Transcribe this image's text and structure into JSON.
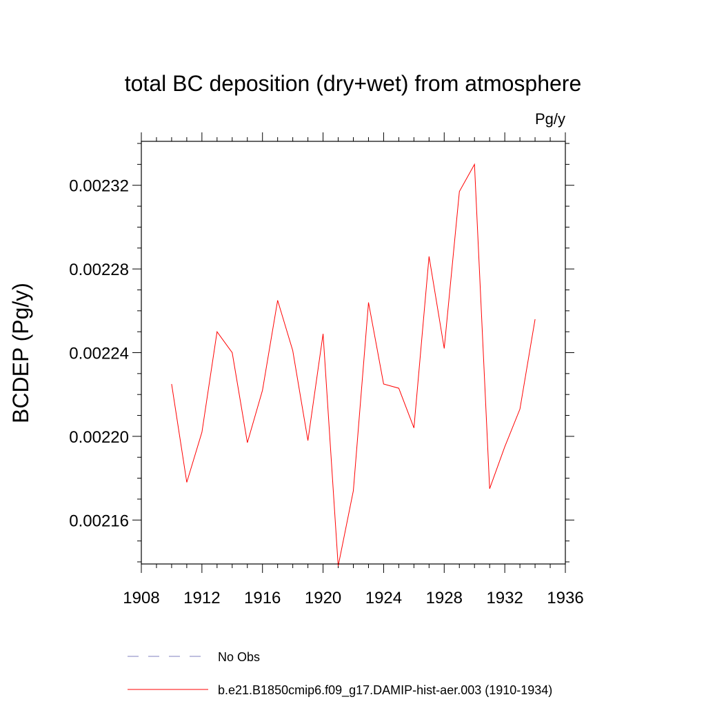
{
  "chart_data": {
    "type": "line",
    "title": "total BC deposition (dry+wet) from atmosphere",
    "units_label": "Pg/y",
    "ylabel": "BCDEP  (Pg/y)",
    "xlabel": "",
    "xlim": [
      1908,
      1936
    ],
    "ylim": [
      0.002139,
      0.002341
    ],
    "x_ticks": [
      1908,
      1912,
      1916,
      1920,
      1924,
      1928,
      1932,
      1936
    ],
    "x_tick_labels": [
      "1908",
      "1912",
      "1916",
      "1920",
      "1924",
      "1928",
      "1932",
      "1936"
    ],
    "y_ticks": [
      0.00216,
      0.0022,
      0.00224,
      0.00228,
      0.00232
    ],
    "y_tick_labels": [
      "0.00216",
      "0.00220",
      "0.00224",
      "0.00228",
      "0.00232"
    ],
    "grid": false,
    "legend_position": "bottom",
    "series": [
      {
        "name": "b.e21.B1850cmip6.f09_g17.DAMIP-hist-aer.003 (1910-1934)",
        "color": "#ff0000",
        "style": "solid",
        "x": [
          1910,
          1911,
          1912,
          1913,
          1914,
          1915,
          1916,
          1917,
          1918,
          1919,
          1920,
          1921,
          1922,
          1923,
          1924,
          1925,
          1926,
          1927,
          1928,
          1929,
          1930,
          1931,
          1932,
          1933,
          1934
        ],
        "values": [
          0.002225,
          0.002178,
          0.002202,
          0.00225,
          0.00224,
          0.002197,
          0.002222,
          0.002265,
          0.002241,
          0.002198,
          0.002249,
          0.002138,
          0.002174,
          0.002264,
          0.002225,
          0.002223,
          0.002204,
          0.002286,
          0.002242,
          0.002317,
          0.00233,
          0.002175,
          0.002195,
          0.002213,
          0.002256
        ]
      }
    ],
    "legend": [
      {
        "label": "No Obs",
        "color": "#7f7fbf",
        "style": "dashed"
      },
      {
        "label": "b.e21.B1850cmip6.f09_g17.DAMIP-hist-aer.003 (1910-1934)",
        "color": "#ff0000",
        "style": "solid"
      }
    ]
  }
}
